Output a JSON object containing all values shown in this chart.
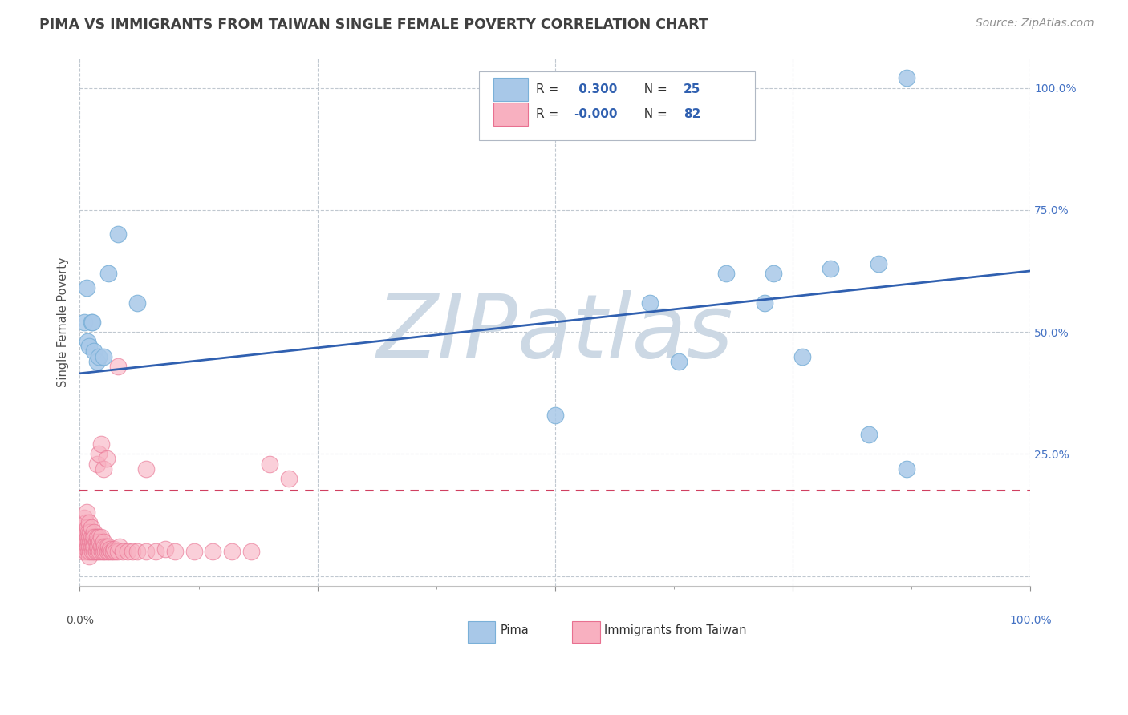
{
  "title": "PIMA VS IMMIGRANTS FROM TAIWAN SINGLE FEMALE POVERTY CORRELATION CHART",
  "source": "Source: ZipAtlas.com",
  "ylabel": "Single Female Poverty",
  "r_pima": 0.3,
  "n_pima": 25,
  "r_taiwan": -0.0,
  "n_taiwan": 82,
  "pima_fill": "#a8c8e8",
  "pima_edge": "#7ab0d8",
  "taiwan_fill": "#f8b0c0",
  "taiwan_edge": "#e87090",
  "trend_pima_color": "#3060b0",
  "trend_taiwan_color": "#d04060",
  "background_color": "#ffffff",
  "grid_color": "#c0c8d0",
  "title_color": "#404040",
  "source_color": "#909090",
  "watermark": "ZIPatlas",
  "watermark_color": "#ccd8e4",
  "pima_x": [
    0.005,
    0.007,
    0.008,
    0.01,
    0.012,
    0.013,
    0.015,
    0.018,
    0.02,
    0.025,
    0.03,
    0.04,
    0.06,
    0.5,
    0.6,
    0.63,
    0.68,
    0.72,
    0.73,
    0.76,
    0.79,
    0.83,
    0.84,
    0.87,
    0.87
  ],
  "pima_y": [
    0.52,
    0.59,
    0.48,
    0.47,
    0.52,
    0.52,
    0.46,
    0.44,
    0.45,
    0.45,
    0.62,
    0.7,
    0.56,
    0.33,
    0.56,
    0.44,
    0.62,
    0.56,
    0.62,
    0.45,
    0.63,
    0.29,
    0.64,
    0.22,
    1.02
  ],
  "taiwan_x_dense": [
    0.002,
    0.003,
    0.003,
    0.004,
    0.004,
    0.005,
    0.005,
    0.005,
    0.006,
    0.006,
    0.006,
    0.007,
    0.007,
    0.007,
    0.008,
    0.008,
    0.008,
    0.009,
    0.009,
    0.009,
    0.01,
    0.01,
    0.01,
    0.01,
    0.011,
    0.011,
    0.011,
    0.012,
    0.012,
    0.012,
    0.013,
    0.013,
    0.014,
    0.014,
    0.015,
    0.015,
    0.015,
    0.016,
    0.016,
    0.017,
    0.017,
    0.018,
    0.018,
    0.019,
    0.019,
    0.02,
    0.02,
    0.021,
    0.021,
    0.022,
    0.022,
    0.023,
    0.024,
    0.025,
    0.025,
    0.026,
    0.027,
    0.028,
    0.029,
    0.03,
    0.031,
    0.032,
    0.033,
    0.035,
    0.036,
    0.038,
    0.04,
    0.042,
    0.045,
    0.05,
    0.055,
    0.06,
    0.07,
    0.08,
    0.09,
    0.1,
    0.12,
    0.14,
    0.16,
    0.18,
    0.2,
    0.22
  ],
  "taiwan_y_dense": [
    0.06,
    0.08,
    0.05,
    0.1,
    0.07,
    0.09,
    0.12,
    0.06,
    0.08,
    0.11,
    0.05,
    0.07,
    0.09,
    0.13,
    0.06,
    0.08,
    0.1,
    0.05,
    0.07,
    0.09,
    0.11,
    0.06,
    0.08,
    0.04,
    0.07,
    0.09,
    0.05,
    0.06,
    0.08,
    0.1,
    0.05,
    0.07,
    0.06,
    0.08,
    0.05,
    0.07,
    0.09,
    0.06,
    0.08,
    0.05,
    0.07,
    0.06,
    0.08,
    0.05,
    0.07,
    0.06,
    0.08,
    0.05,
    0.07,
    0.06,
    0.08,
    0.05,
    0.06,
    0.07,
    0.05,
    0.06,
    0.05,
    0.06,
    0.05,
    0.06,
    0.05,
    0.055,
    0.05,
    0.05,
    0.055,
    0.05,
    0.05,
    0.06,
    0.05,
    0.05,
    0.05,
    0.05,
    0.05,
    0.05,
    0.055,
    0.05,
    0.05,
    0.05,
    0.05,
    0.05,
    0.23,
    0.2
  ],
  "taiwan_outlier_x": [
    0.018,
    0.02,
    0.022,
    0.025,
    0.028,
    0.04,
    0.07
  ],
  "taiwan_outlier_y": [
    0.23,
    0.25,
    0.27,
    0.22,
    0.24,
    0.43,
    0.22
  ],
  "xlim": [
    0.0,
    1.0
  ],
  "ylim": [
    -0.02,
    1.06
  ],
  "trend_pima_x0": 0.0,
  "trend_pima_y0": 0.415,
  "trend_pima_x1": 1.0,
  "trend_pima_y1": 0.625,
  "trend_taiwan_y": 0.175
}
